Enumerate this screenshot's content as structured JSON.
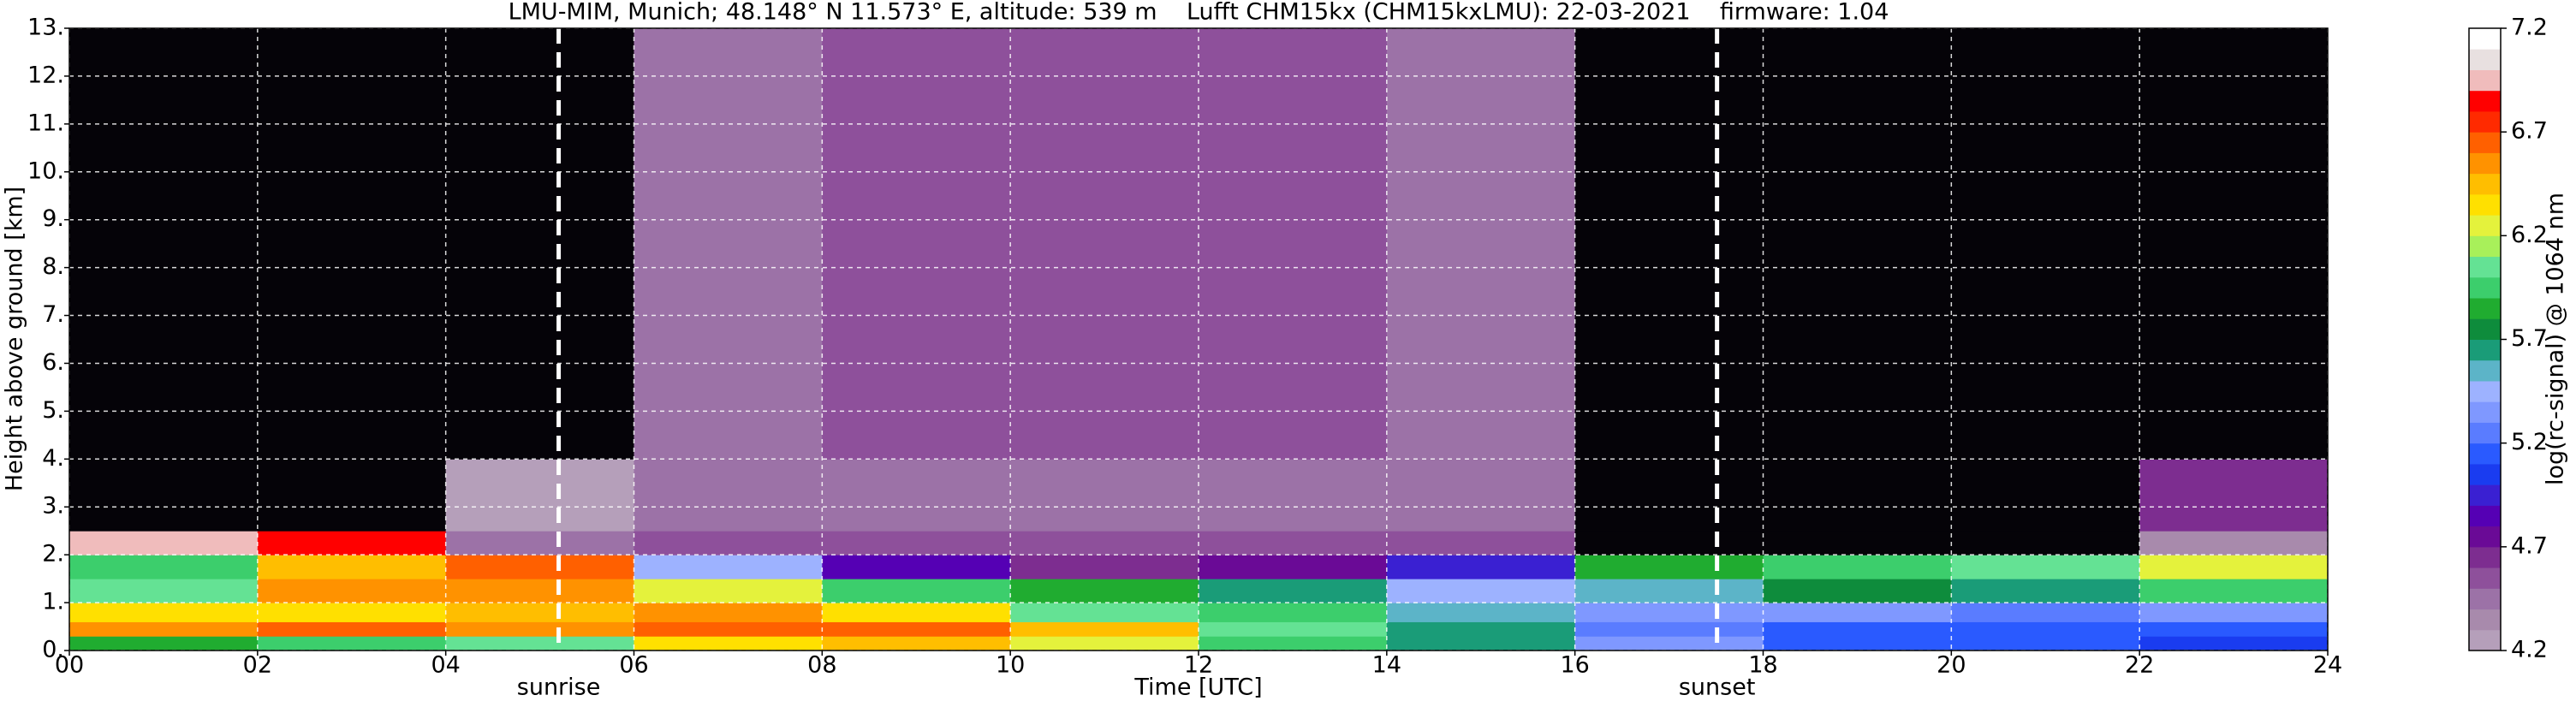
{
  "chart_data": {
    "type": "heatmap",
    "title": "LMU-MIM, Munich; 48.148° N 11.573° E, altitude: 539 m    Lufft CHM15kx (CHM15kxLMU): 22-03-2021    firmware: 1.04",
    "xlabel": "Time [UTC]",
    "ylabel": "Height above ground [km]",
    "colorbar_label": "log(rc-signal) @ 1064 nm",
    "xlim": [
      0,
      24
    ],
    "ylim": [
      0,
      13
    ],
    "xticks": [
      {
        "value": 0,
        "label": "00"
      },
      {
        "value": 2,
        "label": "02"
      },
      {
        "value": 4,
        "label": "04"
      },
      {
        "value": 6,
        "label": "06"
      },
      {
        "value": 8,
        "label": "08"
      },
      {
        "value": 10,
        "label": "10"
      },
      {
        "value": 12,
        "label": "12"
      },
      {
        "value": 14,
        "label": "14"
      },
      {
        "value": 16,
        "label": "16"
      },
      {
        "value": 18,
        "label": "18"
      },
      {
        "value": 20,
        "label": "20"
      },
      {
        "value": 22,
        "label": "22"
      },
      {
        "value": 24,
        "label": "24"
      }
    ],
    "yticks": [
      {
        "value": 0,
        "label": "0."
      },
      {
        "value": 1,
        "label": "1."
      },
      {
        "value": 2,
        "label": "2."
      },
      {
        "value": 3,
        "label": "3."
      },
      {
        "value": 4,
        "label": "4."
      },
      {
        "value": 5,
        "label": "5."
      },
      {
        "value": 6,
        "label": "6."
      },
      {
        "value": 7,
        "label": "7."
      },
      {
        "value": 8,
        "label": "8."
      },
      {
        "value": 9,
        "label": "9."
      },
      {
        "value": 10,
        "label": "10."
      },
      {
        "value": 11,
        "label": "11."
      },
      {
        "value": 12,
        "label": "12."
      },
      {
        "value": 13,
        "label": "13."
      }
    ],
    "grid": true,
    "clim": [
      4.2,
      7.2
    ],
    "cticks": [
      4.2,
      4.7,
      5.2,
      5.7,
      6.2,
      6.7,
      7.2
    ],
    "colormap": [
      "#b59fba",
      "#a88aac",
      "#9c72a7",
      "#8e509b",
      "#7d2d90",
      "#6a0a96",
      "#5500b4",
      "#3a20d2",
      "#1a3cf0",
      "#2a5aff",
      "#5a7cff",
      "#7f98ff",
      "#9db2ff",
      "#5cb4c8",
      "#1a9c78",
      "#0e8c3c",
      "#20ac30",
      "#3cce6c",
      "#64e294",
      "#a8f05a",
      "#e4f23c",
      "#ffe000",
      "#ffbe00",
      "#ff9200",
      "#ff6000",
      "#ff2a00",
      "#ff0000",
      "#f0bcbc",
      "#e8e0e0",
      "#ffffff"
    ],
    "under_color": "#050308",
    "x_edges": [
      0,
      2,
      4,
      6,
      8,
      10,
      12,
      14,
      16,
      18,
      20,
      22,
      24
    ],
    "y_edges": [
      0,
      0.3,
      0.6,
      1.0,
      1.5,
      2.0,
      2.5,
      4,
      13
    ],
    "z": [
      [
        5.8,
        5.9,
        6.0,
        6.3,
        6.4,
        6.2,
        5.9,
        5.6,
        5.3,
        5.1,
        5.1,
        5.0
      ],
      [
        6.5,
        6.6,
        6.5,
        6.6,
        6.6,
        6.4,
        6.0,
        5.6,
        5.2,
        5.1,
        5.1,
        5.1
      ],
      [
        6.3,
        6.3,
        6.4,
        6.5,
        6.3,
        6.0,
        5.9,
        5.5,
        5.3,
        5.3,
        5.2,
        5.3
      ],
      [
        6.0,
        6.5,
        6.5,
        6.2,
        5.9,
        5.8,
        5.6,
        5.4,
        5.5,
        5.7,
        5.6,
        5.9
      ],
      [
        5.9,
        6.4,
        6.6,
        5.4,
        4.8,
        4.6,
        4.7,
        4.9,
        5.8,
        5.9,
        6.0,
        6.2
      ],
      [
        6.9,
        6.8,
        4.4,
        4.5,
        4.5,
        4.5,
        4.5,
        4.5,
        4.0,
        4.0,
        4.0,
        4.3
      ],
      [
        4.0,
        4.0,
        4.2,
        4.4,
        4.4,
        4.4,
        4.4,
        4.4,
        4.0,
        4.0,
        4.0,
        4.6
      ],
      [
        4.0,
        4.0,
        4.1,
        4.4,
        4.5,
        4.5,
        4.5,
        4.4,
        4.0,
        4.0,
        4.0,
        4.0
      ]
    ],
    "annotations": [
      {
        "text": "sunrise",
        "x": 5.2
      },
      {
        "text": "sunset",
        "x": 17.51
      }
    ]
  }
}
